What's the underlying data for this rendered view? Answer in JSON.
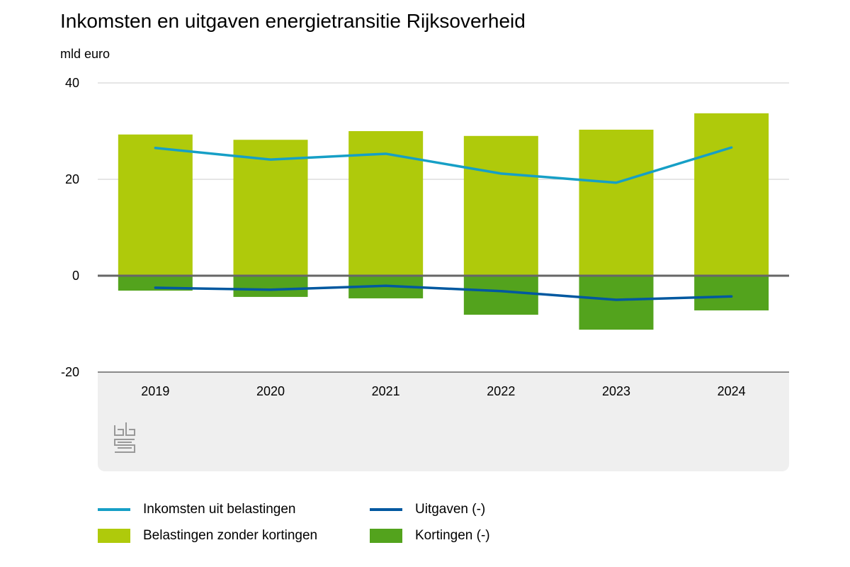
{
  "chart_data": {
    "type": "bar",
    "title": "Inkomsten en uitgaven energietransitie Rijksoverheid",
    "ylabel": "mld euro",
    "xlabel": "",
    "ylim": [
      -20,
      40
    ],
    "yticks": [
      40,
      20,
      0,
      -20
    ],
    "grid": true,
    "legend_placement": "bottom",
    "categories": [
      "2019",
      "2020",
      "2021",
      "2022",
      "2023",
      "2024"
    ],
    "series": [
      {
        "name": "Belastingen zonder kortingen",
        "kind": "bar",
        "color": "#afca0b",
        "values": [
          29.3,
          28.2,
          30.0,
          29.0,
          30.3,
          33.7
        ]
      },
      {
        "name": "Kortingen (-)",
        "kind": "bar",
        "color": "#53a31d",
        "values": [
          -3.1,
          -4.4,
          -4.7,
          -8.1,
          -11.2,
          -7.2
        ]
      },
      {
        "name": "Inkomsten uit belastingen",
        "kind": "line",
        "color": "#169fc6",
        "values": [
          26.5,
          24.1,
          25.3,
          21.2,
          19.3,
          26.6
        ]
      },
      {
        "name": "Uitgaven (-)",
        "kind": "line",
        "color": "#0058a0",
        "values": [
          -2.5,
          -2.9,
          -2.1,
          -3.2,
          -5.0,
          -4.3
        ]
      }
    ]
  },
  "legend": [
    {
      "label": "Inkomsten uit belastingen",
      "type": "line",
      "color": "#169fc6"
    },
    {
      "label": "Uitgaven (-)",
      "type": "line",
      "color": "#0058a0"
    },
    {
      "label": "Belastingen zonder kortingen",
      "type": "box",
      "color": "#afca0b"
    },
    {
      "label": "Kortingen (-)",
      "type": "box",
      "color": "#53a31d"
    }
  ],
  "logo": "cbs"
}
